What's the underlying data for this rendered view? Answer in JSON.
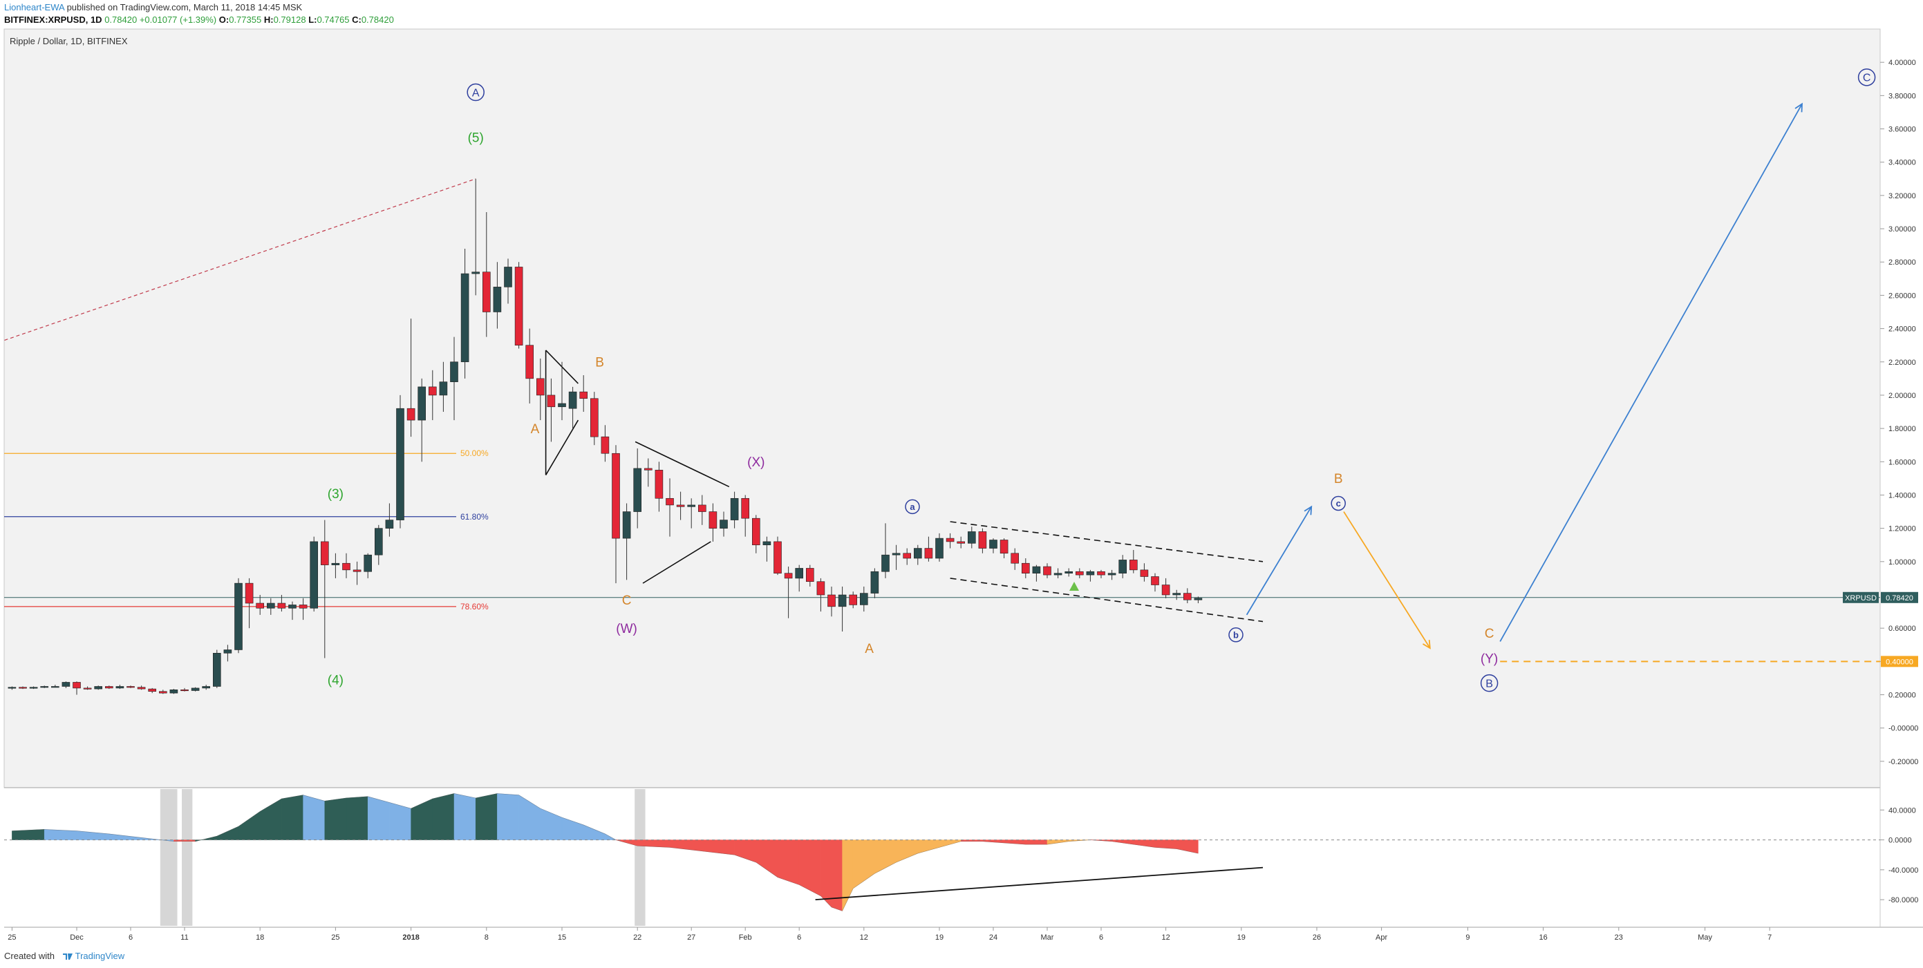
{
  "header": {
    "author": "Lionheart-EWA",
    "published_text": "published on TradingView.com, March 11, 2018 14:45 MSK",
    "symbol": "BITFINEX:XRPUSD, 1D",
    "price": "0.78420",
    "change": "+0.01077 (+1.39%)",
    "open_label": "O:",
    "open": "0.77355",
    "high_label": "H:",
    "high": "0.79128",
    "low_label": "L:",
    "low": "0.74765",
    "close_label": "C:",
    "close": "0.78420"
  },
  "footer": {
    "created_with": "Created with",
    "brand": "TradingView"
  },
  "chart_data": {
    "type": "candlestick",
    "title": "Ripple / Dollar, 1D, BITFINEX",
    "symbol_badge": "XRPUSD",
    "last_price_label": "0.78420",
    "last_price": 0.7842,
    "target_label": "0.40000",
    "target_price": 0.4,
    "y_ticks": [
      "4.00000",
      "3.80000",
      "3.60000",
      "3.40000",
      "3.20000",
      "3.00000",
      "2.80000",
      "2.60000",
      "2.40000",
      "2.20000",
      "2.00000",
      "1.80000",
      "1.60000",
      "1.40000",
      "1.20000",
      "1.00000",
      "0.60000",
      "0.40000",
      "0.20000",
      "-0.00000",
      "-0.20000"
    ],
    "y_tick_values": [
      4.0,
      3.8,
      3.6,
      3.4,
      3.2,
      3.0,
      2.8,
      2.6,
      2.4,
      2.2,
      2.0,
      1.8,
      1.6,
      1.4,
      1.2,
      1.0,
      0.6,
      0.4,
      0.2,
      0.0,
      -0.2
    ],
    "ylim": [
      -0.35,
      4.2
    ],
    "x_ticks": [
      {
        "label": "25",
        "day": -6
      },
      {
        "label": "Dec",
        "day": 0
      },
      {
        "label": "6",
        "day": 5
      },
      {
        "label": "11",
        "day": 10
      },
      {
        "label": "18",
        "day": 17
      },
      {
        "label": "25",
        "day": 24
      },
      {
        "label": "2018",
        "day": 31
      },
      {
        "label": "8",
        "day": 38
      },
      {
        "label": "15",
        "day": 45
      },
      {
        "label": "22",
        "day": 52
      },
      {
        "label": "27",
        "day": 57
      },
      {
        "label": "Feb",
        "day": 62
      },
      {
        "label": "6",
        "day": 67
      },
      {
        "label": "12",
        "day": 73
      },
      {
        "label": "19",
        "day": 80
      },
      {
        "label": "24",
        "day": 85
      },
      {
        "label": "Mar",
        "day": 90
      },
      {
        "label": "6",
        "day": 95
      },
      {
        "label": "12",
        "day": 101
      },
      {
        "label": "19",
        "day": 108
      },
      {
        "label": "26",
        "day": 115
      },
      {
        "label": "Apr",
        "day": 121
      },
      {
        "label": "9",
        "day": 129
      },
      {
        "label": "16",
        "day": 136
      },
      {
        "label": "23",
        "day": 143
      },
      {
        "label": "May",
        "day": 151
      },
      {
        "label": "7",
        "day": 157
      }
    ],
    "candles": [
      {
        "d": -6,
        "o": 0.24,
        "h": 0.25,
        "l": 0.23,
        "c": 0.245
      },
      {
        "d": -5,
        "o": 0.245,
        "h": 0.25,
        "l": 0.235,
        "c": 0.24
      },
      {
        "d": -4,
        "o": 0.24,
        "h": 0.25,
        "l": 0.235,
        "c": 0.245
      },
      {
        "d": -3,
        "o": 0.245,
        "h": 0.255,
        "l": 0.24,
        "c": 0.25
      },
      {
        "d": -2,
        "o": 0.25,
        "h": 0.26,
        "l": 0.245,
        "c": 0.25
      },
      {
        "d": -1,
        "o": 0.25,
        "h": 0.28,
        "l": 0.24,
        "c": 0.275
      },
      {
        "d": 0,
        "o": 0.275,
        "h": 0.28,
        "l": 0.2,
        "c": 0.24
      },
      {
        "d": 1,
        "o": 0.24,
        "h": 0.25,
        "l": 0.23,
        "c": 0.235
      },
      {
        "d": 2,
        "o": 0.235,
        "h": 0.255,
        "l": 0.23,
        "c": 0.25
      },
      {
        "d": 3,
        "o": 0.25,
        "h": 0.255,
        "l": 0.235,
        "c": 0.24
      },
      {
        "d": 4,
        "o": 0.24,
        "h": 0.26,
        "l": 0.235,
        "c": 0.25
      },
      {
        "d": 5,
        "o": 0.25,
        "h": 0.255,
        "l": 0.24,
        "c": 0.245
      },
      {
        "d": 6,
        "o": 0.245,
        "h": 0.255,
        "l": 0.23,
        "c": 0.235
      },
      {
        "d": 7,
        "o": 0.235,
        "h": 0.24,
        "l": 0.21,
        "c": 0.22
      },
      {
        "d": 8,
        "o": 0.22,
        "h": 0.23,
        "l": 0.205,
        "c": 0.21
      },
      {
        "d": 9,
        "o": 0.21,
        "h": 0.235,
        "l": 0.205,
        "c": 0.23
      },
      {
        "d": 10,
        "o": 0.23,
        "h": 0.24,
        "l": 0.22,
        "c": 0.225
      },
      {
        "d": 11,
        "o": 0.225,
        "h": 0.245,
        "l": 0.22,
        "c": 0.24
      },
      {
        "d": 12,
        "o": 0.24,
        "h": 0.26,
        "l": 0.23,
        "c": 0.25
      },
      {
        "d": 13,
        "o": 0.25,
        "h": 0.47,
        "l": 0.24,
        "c": 0.45
      },
      {
        "d": 14,
        "o": 0.45,
        "h": 0.5,
        "l": 0.4,
        "c": 0.47
      },
      {
        "d": 15,
        "o": 0.47,
        "h": 0.9,
        "l": 0.45,
        "c": 0.87
      },
      {
        "d": 16,
        "o": 0.87,
        "h": 0.9,
        "l": 0.6,
        "c": 0.75
      },
      {
        "d": 17,
        "o": 0.75,
        "h": 0.8,
        "l": 0.68,
        "c": 0.72
      },
      {
        "d": 18,
        "o": 0.72,
        "h": 0.78,
        "l": 0.68,
        "c": 0.75
      },
      {
        "d": 19,
        "o": 0.75,
        "h": 0.8,
        "l": 0.7,
        "c": 0.72
      },
      {
        "d": 20,
        "o": 0.72,
        "h": 0.76,
        "l": 0.65,
        "c": 0.74
      },
      {
        "d": 21,
        "o": 0.74,
        "h": 0.78,
        "l": 0.65,
        "c": 0.72
      },
      {
        "d": 22,
        "o": 0.72,
        "h": 1.15,
        "l": 0.7,
        "c": 1.12
      },
      {
        "d": 23,
        "o": 1.12,
        "h": 1.25,
        "l": 0.42,
        "c": 0.98
      },
      {
        "d": 24,
        "o": 0.98,
        "h": 1.05,
        "l": 0.9,
        "c": 0.99
      },
      {
        "d": 25,
        "o": 0.99,
        "h": 1.05,
        "l": 0.9,
        "c": 0.95
      },
      {
        "d": 26,
        "o": 0.95,
        "h": 1.0,
        "l": 0.86,
        "c": 0.94
      },
      {
        "d": 27,
        "o": 0.94,
        "h": 1.05,
        "l": 0.9,
        "c": 1.04
      },
      {
        "d": 28,
        "o": 1.04,
        "h": 1.22,
        "l": 0.98,
        "c": 1.2
      },
      {
        "d": 29,
        "o": 1.2,
        "h": 1.35,
        "l": 1.15,
        "c": 1.25
      },
      {
        "d": 30,
        "o": 1.25,
        "h": 2.0,
        "l": 1.2,
        "c": 1.92
      },
      {
        "d": 31,
        "o": 1.92,
        "h": 2.46,
        "l": 1.75,
        "c": 1.85
      },
      {
        "d": 32,
        "o": 1.85,
        "h": 2.1,
        "l": 1.6,
        "c": 2.05
      },
      {
        "d": 33,
        "o": 2.05,
        "h": 2.15,
        "l": 1.85,
        "c": 2.0
      },
      {
        "d": 34,
        "o": 2.0,
        "h": 2.2,
        "l": 1.9,
        "c": 2.08
      },
      {
        "d": 35,
        "o": 2.08,
        "h": 2.35,
        "l": 1.85,
        "c": 2.2
      },
      {
        "d": 36,
        "o": 2.2,
        "h": 2.88,
        "l": 2.1,
        "c": 2.73
      },
      {
        "d": 37,
        "o": 2.73,
        "h": 3.3,
        "l": 2.6,
        "c": 2.74
      },
      {
        "d": 38,
        "o": 2.74,
        "h": 3.1,
        "l": 2.35,
        "c": 2.5
      },
      {
        "d": 39,
        "o": 2.5,
        "h": 2.8,
        "l": 2.4,
        "c": 2.65
      },
      {
        "d": 40,
        "o": 2.65,
        "h": 2.82,
        "l": 2.55,
        "c": 2.77
      },
      {
        "d": 41,
        "o": 2.77,
        "h": 2.8,
        "l": 2.28,
        "c": 2.3
      },
      {
        "d": 42,
        "o": 2.3,
        "h": 2.4,
        "l": 1.95,
        "c": 2.1
      },
      {
        "d": 43,
        "o": 2.1,
        "h": 2.22,
        "l": 1.85,
        "c": 2.0
      },
      {
        "d": 44,
        "o": 2.0,
        "h": 2.1,
        "l": 1.72,
        "c": 1.93
      },
      {
        "d": 45,
        "o": 1.93,
        "h": 2.2,
        "l": 1.85,
        "c": 1.95
      },
      {
        "d": 46,
        "o": 1.92,
        "h": 2.05,
        "l": 1.8,
        "c": 2.02
      },
      {
        "d": 47,
        "o": 2.02,
        "h": 2.12,
        "l": 1.9,
        "c": 1.98
      },
      {
        "d": 48,
        "o": 1.98,
        "h": 2.02,
        "l": 1.7,
        "c": 1.75
      },
      {
        "d": 49,
        "o": 1.75,
        "h": 1.82,
        "l": 1.6,
        "c": 1.65
      },
      {
        "d": 50,
        "o": 1.65,
        "h": 1.7,
        "l": 0.87,
        "c": 1.14
      },
      {
        "d": 51,
        "o": 1.14,
        "h": 1.35,
        "l": 0.89,
        "c": 1.3
      },
      {
        "d": 52,
        "o": 1.3,
        "h": 1.68,
        "l": 1.2,
        "c": 1.56
      },
      {
        "d": 53,
        "o": 1.56,
        "h": 1.62,
        "l": 1.45,
        "c": 1.55
      },
      {
        "d": 54,
        "o": 1.55,
        "h": 1.6,
        "l": 1.3,
        "c": 1.38
      },
      {
        "d": 55,
        "o": 1.38,
        "h": 1.5,
        "l": 1.15,
        "c": 1.34
      },
      {
        "d": 56,
        "o": 1.34,
        "h": 1.42,
        "l": 1.25,
        "c": 1.33
      },
      {
        "d": 57,
        "o": 1.33,
        "h": 1.38,
        "l": 1.2,
        "c": 1.34
      },
      {
        "d": 58,
        "o": 1.34,
        "h": 1.4,
        "l": 1.22,
        "c": 1.3
      },
      {
        "d": 59,
        "o": 1.3,
        "h": 1.35,
        "l": 1.12,
        "c": 1.2
      },
      {
        "d": 60,
        "o": 1.2,
        "h": 1.3,
        "l": 1.15,
        "c": 1.25
      },
      {
        "d": 61,
        "o": 1.25,
        "h": 1.42,
        "l": 1.2,
        "c": 1.38
      },
      {
        "d": 62,
        "o": 1.38,
        "h": 1.4,
        "l": 1.15,
        "c": 1.26
      },
      {
        "d": 63,
        "o": 1.26,
        "h": 1.28,
        "l": 1.05,
        "c": 1.1
      },
      {
        "d": 64,
        "o": 1.1,
        "h": 1.15,
        "l": 1.0,
        "c": 1.12
      },
      {
        "d": 65,
        "o": 1.12,
        "h": 1.15,
        "l": 0.92,
        "c": 0.93
      },
      {
        "d": 66,
        "o": 0.93,
        "h": 0.97,
        "l": 0.66,
        "c": 0.9
      },
      {
        "d": 67,
        "o": 0.9,
        "h": 0.98,
        "l": 0.82,
        "c": 0.96
      },
      {
        "d": 68,
        "o": 0.96,
        "h": 0.98,
        "l": 0.85,
        "c": 0.88
      },
      {
        "d": 69,
        "o": 0.88,
        "h": 0.9,
        "l": 0.7,
        "c": 0.8
      },
      {
        "d": 70,
        "o": 0.8,
        "h": 0.85,
        "l": 0.67,
        "c": 0.73
      },
      {
        "d": 71,
        "o": 0.73,
        "h": 0.85,
        "l": 0.58,
        "c": 0.8
      },
      {
        "d": 72,
        "o": 0.8,
        "h": 0.82,
        "l": 0.72,
        "c": 0.74
      },
      {
        "d": 73,
        "o": 0.74,
        "h": 0.85,
        "l": 0.7,
        "c": 0.81
      },
      {
        "d": 74,
        "o": 0.81,
        "h": 0.96,
        "l": 0.78,
        "c": 0.94
      },
      {
        "d": 75,
        "o": 0.94,
        "h": 1.23,
        "l": 0.9,
        "c": 1.04
      },
      {
        "d": 76,
        "o": 1.04,
        "h": 1.1,
        "l": 0.95,
        "c": 1.05
      },
      {
        "d": 77,
        "o": 1.05,
        "h": 1.08,
        "l": 0.98,
        "c": 1.02
      },
      {
        "d": 78,
        "o": 1.02,
        "h": 1.1,
        "l": 0.98,
        "c": 1.08
      },
      {
        "d": 79,
        "o": 1.08,
        "h": 1.15,
        "l": 1.0,
        "c": 1.02
      },
      {
        "d": 80,
        "o": 1.02,
        "h": 1.17,
        "l": 1.0,
        "c": 1.14
      },
      {
        "d": 81,
        "o": 1.14,
        "h": 1.17,
        "l": 1.08,
        "c": 1.12
      },
      {
        "d": 82,
        "o": 1.12,
        "h": 1.15,
        "l": 1.08,
        "c": 1.11
      },
      {
        "d": 83,
        "o": 1.11,
        "h": 1.21,
        "l": 1.08,
        "c": 1.18
      },
      {
        "d": 84,
        "o": 1.18,
        "h": 1.2,
        "l": 1.05,
        "c": 1.08
      },
      {
        "d": 85,
        "o": 1.08,
        "h": 1.14,
        "l": 1.05,
        "c": 1.13
      },
      {
        "d": 86,
        "o": 1.13,
        "h": 1.14,
        "l": 1.02,
        "c": 1.05
      },
      {
        "d": 87,
        "o": 1.05,
        "h": 1.08,
        "l": 0.95,
        "c": 0.99
      },
      {
        "d": 88,
        "o": 0.99,
        "h": 1.02,
        "l": 0.9,
        "c": 0.93
      },
      {
        "d": 89,
        "o": 0.93,
        "h": 0.98,
        "l": 0.88,
        "c": 0.97
      },
      {
        "d": 90,
        "o": 0.97,
        "h": 0.99,
        "l": 0.9,
        "c": 0.92
      },
      {
        "d": 91,
        "o": 0.92,
        "h": 0.96,
        "l": 0.9,
        "c": 0.93
      },
      {
        "d": 92,
        "o": 0.93,
        "h": 0.96,
        "l": 0.91,
        "c": 0.94
      },
      {
        "d": 93,
        "o": 0.94,
        "h": 0.96,
        "l": 0.9,
        "c": 0.92
      },
      {
        "d": 94,
        "o": 0.92,
        "h": 0.95,
        "l": 0.88,
        "c": 0.94
      },
      {
        "d": 95,
        "o": 0.94,
        "h": 0.95,
        "l": 0.9,
        "c": 0.92
      },
      {
        "d": 96,
        "o": 0.92,
        "h": 0.95,
        "l": 0.89,
        "c": 0.93
      },
      {
        "d": 97,
        "o": 0.93,
        "h": 1.04,
        "l": 0.9,
        "c": 1.01
      },
      {
        "d": 98,
        "o": 1.01,
        "h": 1.07,
        "l": 0.93,
        "c": 0.95
      },
      {
        "d": 99,
        "o": 0.95,
        "h": 0.99,
        "l": 0.88,
        "c": 0.91
      },
      {
        "d": 100,
        "o": 0.91,
        "h": 0.93,
        "l": 0.82,
        "c": 0.86
      },
      {
        "d": 101,
        "o": 0.86,
        "h": 0.9,
        "l": 0.78,
        "c": 0.8
      },
      {
        "d": 102,
        "o": 0.8,
        "h": 0.83,
        "l": 0.77,
        "c": 0.81
      },
      {
        "d": 103,
        "o": 0.81,
        "h": 0.84,
        "l": 0.75,
        "c": 0.77
      },
      {
        "d": 104,
        "o": 0.77,
        "h": 0.79,
        "l": 0.75,
        "c": 0.78
      }
    ],
    "fib_levels": [
      {
        "label": "50.00%",
        "value": 1.65,
        "color": "#f7a823"
      },
      {
        "label": "61.80%",
        "value": 1.27,
        "color": "#2e3f9e"
      },
      {
        "label": "78.60%",
        "value": 0.73,
        "color": "#e53935"
      }
    ],
    "wave_labels": [
      {
        "text": "A",
        "d": 37,
        "v": 3.82,
        "color": "#2e3f9e",
        "circled": true
      },
      {
        "text": "(5)",
        "d": 37,
        "v": 3.55,
        "color": "#2ea52e"
      },
      {
        "text": "(3)",
        "d": 24,
        "v": 1.41,
        "color": "#2ea52e"
      },
      {
        "text": "(4)",
        "d": 24,
        "v": 0.29,
        "color": "#2ea52e"
      },
      {
        "text": "A",
        "d": 42.5,
        "v": 1.8,
        "color": "#d4852a"
      },
      {
        "text": "B",
        "d": 48.5,
        "v": 2.2,
        "color": "#d4852a"
      },
      {
        "text": "(X)",
        "d": 63,
        "v": 1.6,
        "color": "#8e2a9e"
      },
      {
        "text": "C",
        "d": 51,
        "v": 0.77,
        "color": "#d4852a"
      },
      {
        "text": "(W)",
        "d": 51,
        "v": 0.6,
        "color": "#8e2a9e"
      },
      {
        "text": "a",
        "d": 77.5,
        "v": 1.33,
        "color": "#2e3f9e",
        "circled": true,
        "small": true
      },
      {
        "text": "A",
        "d": 73.5,
        "v": 0.48,
        "color": "#d4852a"
      },
      {
        "text": "b",
        "d": 107.5,
        "v": 0.56,
        "color": "#2e3f9e",
        "circled": true,
        "small": true
      },
      {
        "text": "B",
        "d": 117,
        "v": 1.5,
        "color": "#d4852a"
      },
      {
        "text": "c",
        "d": 117,
        "v": 1.35,
        "color": "#2e3f9e",
        "circled": true,
        "small": true
      },
      {
        "text": "C",
        "d": 131,
        "v": 0.57,
        "color": "#d4852a"
      },
      {
        "text": "(Y)",
        "d": 131,
        "v": 0.42,
        "color": "#8e2a9e"
      },
      {
        "text": "B",
        "d": 131,
        "v": 0.27,
        "color": "#2e3f9e",
        "circled": true
      },
      {
        "text": "C",
        "d": 166,
        "v": 3.91,
        "color": "#2e3f9e",
        "circled": true
      }
    ],
    "oscillator": {
      "y_ticks": [
        "40.0000",
        "0.0000",
        "-40.0000",
        "-80.0000"
      ],
      "y_tick_values": [
        40,
        0,
        -40,
        -80
      ],
      "ylim": [
        -115,
        68
      ],
      "x": [
        -6,
        -3,
        0,
        3,
        6,
        9,
        11,
        13,
        15,
        17,
        19,
        21,
        23,
        25,
        27,
        29,
        31,
        33,
        35,
        37,
        39,
        41,
        43,
        45,
        47,
        49,
        50,
        52,
        55,
        58,
        61,
        63,
        65,
        67,
        69,
        70,
        71,
        72,
        74,
        76,
        78,
        80,
        82,
        84,
        86,
        88,
        90,
        92,
        94,
        96,
        98,
        100,
        102,
        104
      ],
      "values": [
        12,
        14,
        12,
        8,
        3,
        -2,
        -2,
        5,
        18,
        38,
        55,
        60,
        52,
        56,
        58,
        50,
        42,
        55,
        62,
        56,
        62,
        60,
        42,
        30,
        20,
        8,
        0,
        -8,
        -10,
        -15,
        -20,
        -30,
        -50,
        -60,
        -75,
        -90,
        -95,
        -65,
        -45,
        -30,
        -18,
        -10,
        -2,
        -2,
        -4,
        -6,
        -6,
        -2,
        0,
        -2,
        -6,
        -10,
        -12,
        -18
      ],
      "colors": {
        "pos_up": "#2f5e56",
        "pos_down": "#7fb1e6",
        "neg_down": "#f05450",
        "neg_up": "#f8b458"
      }
    }
  }
}
